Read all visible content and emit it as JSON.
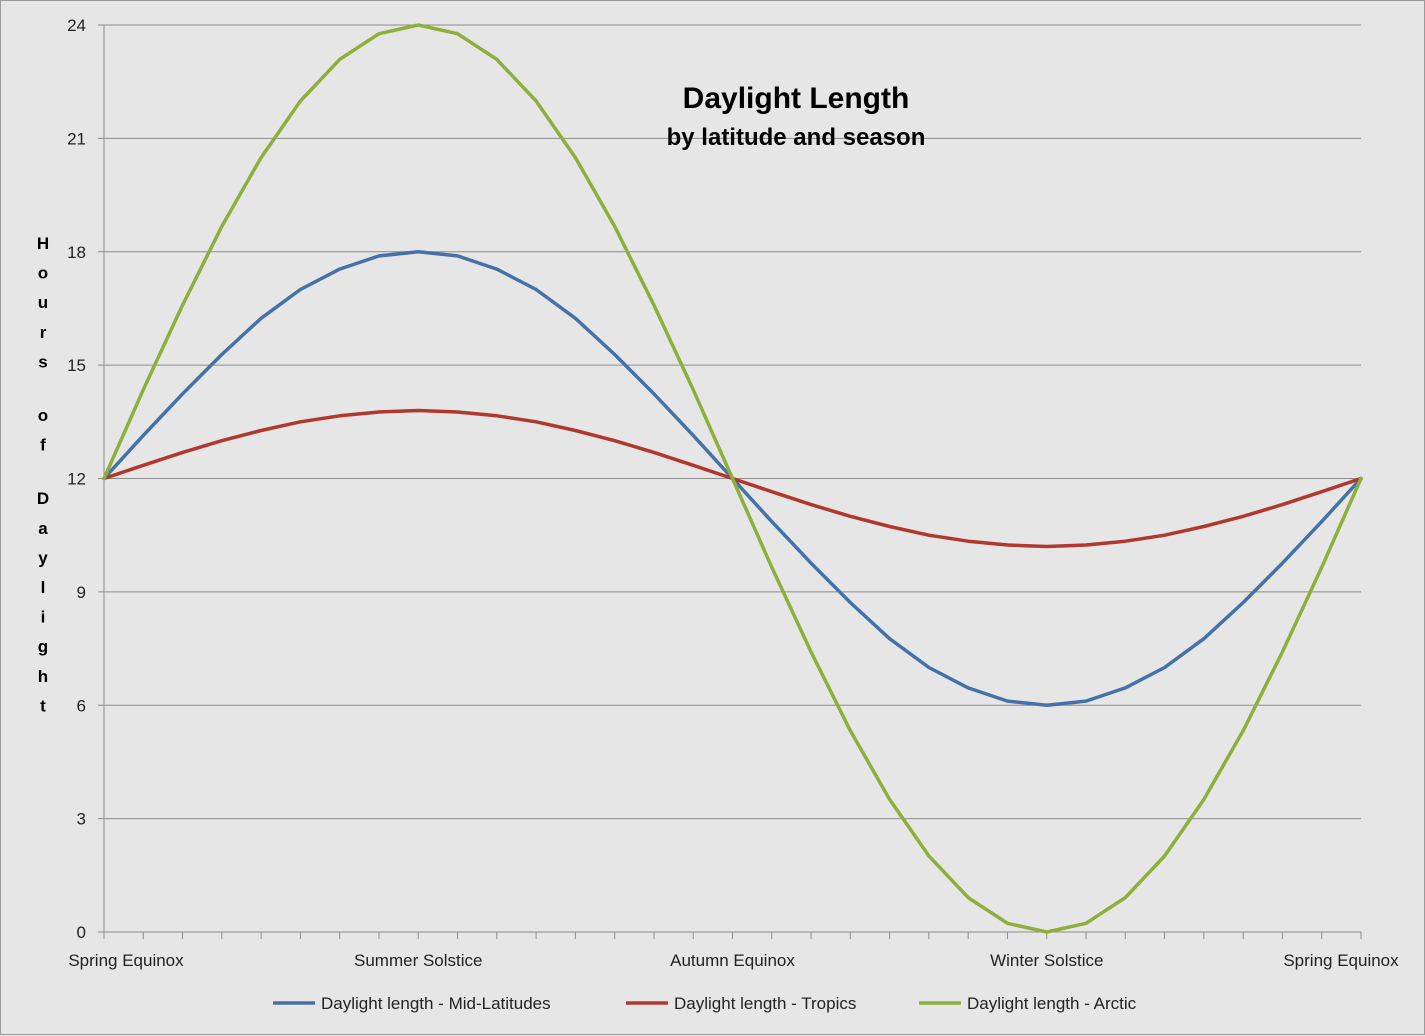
{
  "chart_data": {
    "type": "line",
    "title": "Daylight Length",
    "subtitle": "by latitude and season",
    "ylabel": "Hours of Daylight",
    "xlabel": "",
    "ylim": [
      0,
      24
    ],
    "yticks": [
      0,
      3,
      6,
      9,
      12,
      15,
      18,
      21,
      24
    ],
    "grid": true,
    "legend_position": "bottom",
    "category_labels": [
      "Spring Equinox",
      "Summer Solstice",
      "Autumn Equinox",
      "Winter Solstice",
      "Spring Equinox"
    ],
    "x": [
      0,
      1,
      2,
      3,
      4,
      5,
      6,
      7,
      8,
      9,
      10,
      11,
      12,
      13,
      14,
      15,
      16,
      17,
      18,
      19,
      20,
      21,
      22,
      23,
      24,
      25,
      26,
      27,
      28,
      29,
      30,
      31,
      32
    ],
    "series": [
      {
        "name": "Daylight length - Mid-Latitudes",
        "color": "#4472a8",
        "values": [
          12.0,
          13.14,
          14.24,
          15.28,
          16.24,
          17.0,
          17.54,
          17.89,
          18.0,
          17.89,
          17.54,
          17.0,
          16.24,
          15.28,
          14.24,
          13.14,
          12.0,
          10.86,
          9.76,
          8.72,
          7.76,
          7.0,
          6.46,
          6.11,
          6.0,
          6.11,
          6.46,
          7.0,
          7.76,
          8.72,
          9.76,
          10.86,
          12.0
        ]
      },
      {
        "name": "Daylight length - Tropics",
        "color": "#b0382e",
        "values": [
          12.0,
          12.35,
          12.69,
          13.0,
          13.27,
          13.5,
          13.66,
          13.76,
          13.8,
          13.76,
          13.66,
          13.5,
          13.27,
          13.0,
          12.69,
          12.35,
          12.0,
          11.65,
          11.31,
          11.0,
          10.73,
          10.5,
          10.34,
          10.24,
          10.2,
          10.24,
          10.34,
          10.5,
          10.73,
          11.0,
          11.31,
          11.65,
          12.0
        ]
      },
      {
        "name": "Daylight length - Arctic",
        "color": "#8daf3b",
        "values": [
          12.0,
          14.35,
          16.59,
          18.67,
          20.49,
          21.99,
          23.09,
          23.77,
          24.0,
          23.77,
          23.09,
          21.99,
          20.49,
          18.67,
          16.59,
          14.35,
          12.0,
          9.65,
          7.41,
          5.33,
          3.51,
          2.01,
          0.91,
          0.23,
          0.0,
          0.23,
          0.91,
          2.01,
          3.51,
          5.33,
          7.41,
          9.65,
          12.0
        ]
      }
    ]
  }
}
